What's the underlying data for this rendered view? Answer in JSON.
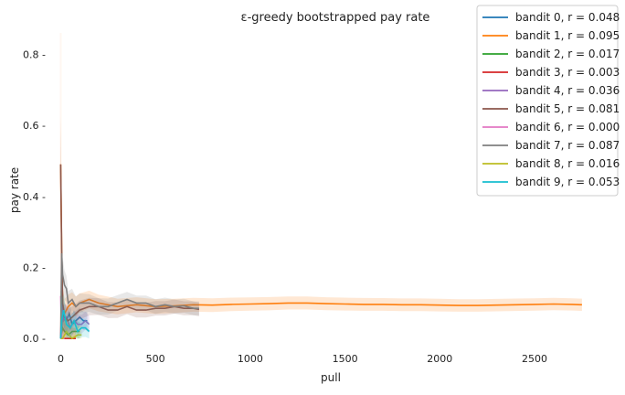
{
  "chart_data": {
    "type": "line",
    "title": "ε-greedy bootstrapped pay rate",
    "xlabel": "pull",
    "ylabel": "pay rate",
    "xlim": [
      -60,
      2900
    ],
    "ylim": [
      -0.02,
      0.86
    ],
    "xticks": [
      0,
      500,
      1000,
      1500,
      2000,
      2500
    ],
    "yticks": [
      0.0,
      0.2,
      0.4,
      0.6,
      0.8
    ],
    "xtick_labels": [
      "0",
      "500",
      "1000",
      "1500",
      "2000",
      "2500"
    ],
    "ytick_labels": [
      "0.0 -",
      "0.2 -",
      "0.4 -",
      "0.6 -",
      "0.8 -"
    ],
    "grid": false,
    "legend_position": "top-right",
    "series": [
      {
        "name": "bandit 0, r = 0.048",
        "color": "#1f77b4",
        "x": [
          0,
          5,
          10,
          20,
          30,
          45,
          60,
          80,
          100,
          120,
          140
        ],
        "y": [
          0.0,
          0.02,
          0.08,
          0.06,
          0.05,
          0.07,
          0.04,
          0.05,
          0.06,
          0.05,
          0.05
        ]
      },
      {
        "name": "bandit 1, r = 0.095",
        "color": "#ff7f0e",
        "x": [
          0,
          5,
          10,
          20,
          40,
          60,
          80,
          100,
          150,
          200,
          300,
          400,
          500,
          600,
          700,
          800,
          900,
          1000,
          1100,
          1200,
          1300,
          1400,
          1500,
          1600,
          1700,
          1800,
          1900,
          2000,
          2100,
          2200,
          2300,
          2400,
          2500,
          2600,
          2700,
          2750
        ],
        "y": [
          0.49,
          0.25,
          0.1,
          0.07,
          0.09,
          0.1,
          0.09,
          0.1,
          0.11,
          0.1,
          0.09,
          0.095,
          0.09,
          0.092,
          0.095,
          0.094,
          0.096,
          0.097,
          0.098,
          0.1,
          0.1,
          0.098,
          0.097,
          0.096,
          0.096,
          0.095,
          0.095,
          0.094,
          0.093,
          0.093,
          0.094,
          0.095,
          0.096,
          0.097,
          0.096,
          0.095
        ]
      },
      {
        "name": "bandit 2, r = 0.017",
        "color": "#2ca02c",
        "x": [
          0,
          10,
          20,
          40,
          60,
          80,
          100
        ],
        "y": [
          0.0,
          0.03,
          0.02,
          0.01,
          0.02,
          0.02,
          0.02
        ]
      },
      {
        "name": "bandit 3, r = 0.003",
        "color": "#d62728",
        "x": [
          0,
          10,
          30,
          50,
          80
        ],
        "y": [
          0.0,
          0.0,
          0.0,
          0.0,
          0.0
        ]
      },
      {
        "name": "bandit 4, r = 0.036",
        "color": "#9467bd",
        "x": [
          0,
          5,
          15,
          30,
          50,
          70,
          90,
          110,
          130,
          150
        ],
        "y": [
          0.0,
          0.1,
          0.05,
          0.06,
          0.03,
          0.05,
          0.04,
          0.04,
          0.05,
          0.04
        ]
      },
      {
        "name": "bandit 5, r = 0.081",
        "color": "#8c564b",
        "x": [
          0,
          5,
          10,
          20,
          40,
          60,
          80,
          100,
          150,
          200,
          250,
          300,
          350,
          400,
          450,
          500,
          550,
          600,
          650,
          700,
          730
        ],
        "y": [
          0.49,
          0.25,
          0.1,
          0.06,
          0.05,
          0.06,
          0.07,
          0.08,
          0.09,
          0.09,
          0.08,
          0.08,
          0.09,
          0.08,
          0.08,
          0.085,
          0.085,
          0.09,
          0.085,
          0.085,
          0.082
        ]
      },
      {
        "name": "bandit 6, r = 0.000",
        "color": "#e377c2",
        "x": [
          0,
          5,
          10,
          20
        ],
        "y": [
          0.12,
          0.0,
          0.0,
          0.0
        ]
      },
      {
        "name": "bandit 7, r = 0.087",
        "color": "#7f7f7f",
        "x": [
          0,
          5,
          10,
          20,
          30,
          40,
          60,
          80,
          100,
          150,
          200,
          250,
          300,
          350,
          400,
          450,
          500,
          550,
          600,
          650,
          700,
          730
        ],
        "y": [
          0.0,
          0.24,
          0.18,
          0.15,
          0.14,
          0.1,
          0.11,
          0.09,
          0.1,
          0.1,
          0.09,
          0.09,
          0.1,
          0.11,
          0.1,
          0.1,
          0.09,
          0.095,
          0.09,
          0.092,
          0.085,
          0.085
        ]
      },
      {
        "name": "bandit 8, r = 0.016",
        "color": "#bcbd22",
        "x": [
          0,
          10,
          30,
          60,
          90,
          110
        ],
        "y": [
          0.0,
          0.0,
          0.02,
          0.0,
          0.01,
          0.01
        ]
      },
      {
        "name": "bandit 9, r = 0.053",
        "color": "#17becf",
        "x": [
          0,
          5,
          15,
          30,
          50,
          70,
          90,
          110,
          130,
          150
        ],
        "y": [
          0.0,
          0.05,
          0.08,
          0.04,
          0.03,
          0.05,
          0.02,
          0.03,
          0.03,
          0.02
        ]
      }
    ]
  }
}
